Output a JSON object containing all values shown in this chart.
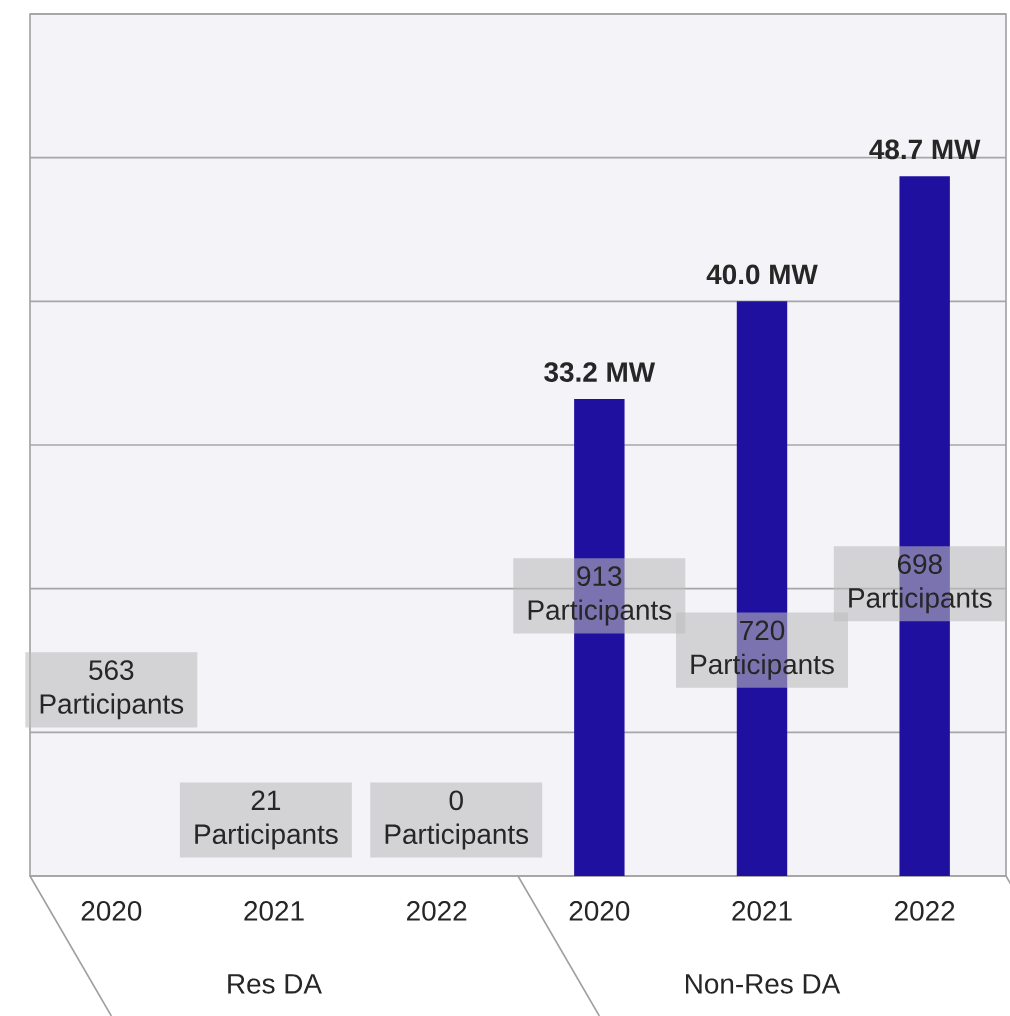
{
  "chart_data": {
    "type": "bar",
    "categories": [
      "2020",
      "2021",
      "2022",
      "2020",
      "2021",
      "2022"
    ],
    "values": [
      null,
      null,
      null,
      33.2,
      40.0,
      48.7
    ],
    "color": "#2010a0",
    "value_labels": [
      null,
      null,
      null,
      "33.2 MW",
      "40.0 MW",
      "48.7 MW"
    ],
    "ylim": [
      0,
      60
    ],
    "yticks": [
      {
        "value": 0,
        "label": null
      },
      {
        "value": 10,
        "label": null
      },
      {
        "value": 20,
        "label": null
      },
      {
        "value": 30,
        "label": null
      },
      {
        "value": 40,
        "label": null
      },
      {
        "value": 50,
        "label": null
      },
      {
        "value": 60,
        "label": null
      }
    ],
    "grid": "y",
    "tick_labels": "x",
    "annotations": [
      "563 Participants",
      "21 Participants",
      "0 Participants",
      "913 Participants",
      "720 Participants",
      "698 Participants",
      "Res DA",
      "Non-Res DA"
    ]
  }
}
